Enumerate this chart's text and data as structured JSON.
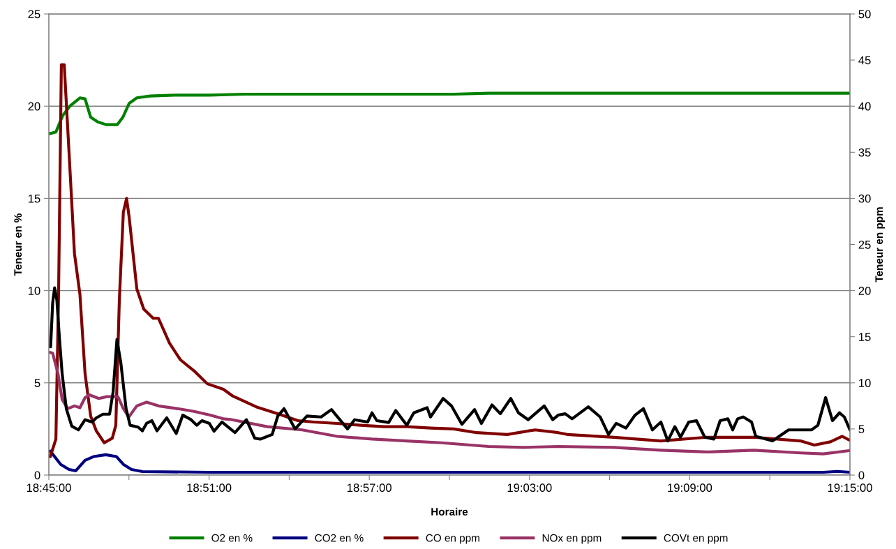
{
  "chart_data": {
    "type": "line",
    "xlabel": "Horaire",
    "ylabel": "Teneur en %",
    "y2label": "Teneur en ppm",
    "xlim": [
      18.75,
      19.25
    ],
    "xticks": [
      {
        "value": 18.75,
        "label": "18:45:00"
      },
      {
        "value": 18.8,
        "label": null
      },
      {
        "value": 18.85,
        "label": "18:51:00"
      },
      {
        "value": 18.9,
        "label": null
      },
      {
        "value": 18.95,
        "label": "18:57:00"
      },
      {
        "value": 19.0,
        "label": null
      },
      {
        "value": 19.05,
        "label": "19:03:00"
      },
      {
        "value": 19.1,
        "label": null
      },
      {
        "value": 19.15,
        "label": "19:09:00"
      },
      {
        "value": 19.2,
        "label": null
      },
      {
        "value": 19.25,
        "label": "19:15:00"
      }
    ],
    "ylim": [
      0,
      25
    ],
    "yticks": [
      0,
      5,
      10,
      15,
      20,
      25
    ],
    "y2lim": [
      0,
      50
    ],
    "y2ticks": [
      0,
      5,
      10,
      15,
      20,
      25,
      30,
      35,
      40,
      45,
      50
    ],
    "grid": "y",
    "legend": "bottom",
    "marker": "none",
    "line_style": "solid",
    "series": [
      {
        "name": "O2 en %",
        "color": "#008000",
        "x": [
          18.75,
          18.7544,
          18.7587,
          18.7631,
          18.7694,
          18.7726,
          18.7761,
          18.7805,
          18.7857,
          18.7927,
          18.7962,
          18.8001,
          18.8049,
          18.8132,
          18.8284,
          18.8502,
          18.872,
          19.0026,
          19.0244,
          19.25
        ],
        "values": [
          18.5,
          18.6,
          19.5,
          20.0,
          20.45,
          20.4,
          19.4,
          19.15,
          19.0,
          19.0,
          19.4,
          20.15,
          20.45,
          20.55,
          20.6,
          20.6,
          20.65,
          20.65,
          20.7,
          20.7
        ]
      },
      {
        "name": "CO2 en %",
        "color": "#000080",
        "x": [
          18.7509,
          18.7574,
          18.7626,
          18.7668,
          18.7726,
          18.7779,
          18.7855,
          18.7922,
          18.7965,
          18.8016,
          18.8084,
          18.8502,
          19.2334,
          19.2422,
          19.25
        ],
        "values": [
          1.3,
          0.58,
          0.3,
          0.23,
          0.8,
          1.0,
          1.1,
          1.0,
          0.58,
          0.3,
          0.19,
          0.15,
          0.15,
          0.2,
          0.15
        ]
      },
      {
        "name": "CO en ppm",
        "color": "#800000",
        "axis": "y2",
        "x": [
          18.7509,
          18.7544,
          18.7561,
          18.7578,
          18.7596,
          18.7626,
          18.766,
          18.7694,
          18.7726,
          18.7761,
          18.7796,
          18.7846,
          18.7896,
          18.7918,
          18.794,
          18.7965,
          18.7985,
          18.8001,
          18.8049,
          18.8092,
          18.8151,
          18.8184,
          18.8253,
          18.8321,
          18.8406,
          18.8489,
          18.8589,
          18.8645,
          18.8794,
          18.8937,
          18.9055,
          18.9155,
          18.9299,
          18.9447,
          18.9591,
          18.9734,
          18.9882,
          19.0026,
          19.017,
          19.0361,
          19.0535,
          19.0679,
          19.0736,
          19.1028,
          19.1319,
          19.1607,
          19.1899,
          19.2191,
          19.2278,
          19.2378,
          19.2452,
          19.2495
        ],
        "values": [
          2,
          3.9,
          20,
          44.5,
          44.5,
          35,
          24,
          19.6,
          11,
          6.4,
          4.8,
          3.5,
          4.0,
          5.4,
          19,
          28.5,
          30,
          28,
          20.2,
          18,
          17,
          17,
          14.3,
          12.5,
          11.3,
          9.9,
          9.3,
          8.6,
          7.4,
          6.6,
          5.9,
          5.75,
          5.6,
          5.4,
          5.25,
          5.25,
          5.1,
          5.0,
          4.6,
          4.4,
          4.9,
          4.6,
          4.4,
          4.1,
          3.7,
          4.1,
          4.1,
          3.7,
          3.25,
          3.6,
          4.2,
          3.8
        ]
      },
      {
        "name": "NOx en ppm",
        "color": "#993366",
        "axis": "y2",
        "x": [
          18.7509,
          18.7524,
          18.7557,
          18.7583,
          18.7618,
          18.766,
          18.7694,
          18.7726,
          18.7753,
          18.7812,
          18.7861,
          18.7931,
          18.7965,
          18.7999,
          18.8049,
          18.811,
          18.8184,
          18.8304,
          18.8406,
          18.8506,
          18.8589,
          18.8645,
          18.8863,
          18.9081,
          18.9299,
          18.9517,
          18.9734,
          18.9952,
          19.0244,
          19.0462,
          19.0679,
          19.1028,
          19.1319,
          19.1607,
          19.1899,
          19.2191,
          19.2334,
          19.2495
        ],
        "values": [
          13.3,
          13.2,
          11,
          8.2,
          7.2,
          7.5,
          7.3,
          8.4,
          8.7,
          8.3,
          8.5,
          8.5,
          7.2,
          6.3,
          7.5,
          7.9,
          7.5,
          7.2,
          6.9,
          6.5,
          6.1,
          6.0,
          5.25,
          4.9,
          4.2,
          3.9,
          3.7,
          3.5,
          3.1,
          3.0,
          3.1,
          3.0,
          2.7,
          2.5,
          2.7,
          2.4,
          2.3,
          2.65
        ]
      },
      {
        "name": "COVt en ppm",
        "color": "#000000",
        "axis": "y2",
        "x": [
          18.7511,
          18.7524,
          18.7536,
          18.755,
          18.7567,
          18.7583,
          18.7609,
          18.7643,
          18.7685,
          18.7726,
          18.777,
          18.7796,
          18.7838,
          18.7879,
          18.7901,
          18.7925,
          18.7949,
          18.7982,
          18.8007,
          18.8057,
          18.8084,
          18.811,
          18.8143,
          18.8175,
          18.8236,
          18.8295,
          18.8336,
          18.8388,
          18.8423,
          18.8456,
          18.8502,
          18.8531,
          18.858,
          18.8662,
          18.8733,
          18.8785,
          18.882,
          18.8894,
          18.8929,
          18.8968,
          18.9037,
          18.9111,
          18.9199,
          18.9264,
          18.9364,
          18.9408,
          18.949,
          18.9517,
          18.9547,
          18.9621,
          18.9665,
          18.9734,
          18.9778,
          18.9861,
          18.9882,
          18.9961,
          19.0013,
          19.0078,
          19.0157,
          19.02,
          19.0266,
          19.0318,
          19.0383,
          19.0431,
          19.0492,
          19.0592,
          19.0645,
          19.0679,
          19.0723,
          19.0766,
          19.0867,
          19.0941,
          19.0993,
          19.1041,
          19.1102,
          19.1159,
          19.1211,
          19.1267,
          19.132,
          19.1363,
          19.1407,
          19.1442,
          19.1494,
          19.1542,
          19.1594,
          19.1651,
          19.169,
          19.1738,
          19.1768,
          19.1799,
          19.1834,
          19.1886,
          19.1912,
          19.2017,
          19.2117,
          19.2217,
          19.226,
          19.23,
          19.2348,
          19.2391,
          19.2435,
          19.2465,
          19.25
        ],
        "values": [
          13.9,
          18.7,
          20.3,
          19.0,
          14.6,
          11,
          7.2,
          5.3,
          4.9,
          6.0,
          5.75,
          6.2,
          6.6,
          6.6,
          9.0,
          14.7,
          12.2,
          7.2,
          5.4,
          5.2,
          4.8,
          5.6,
          5.9,
          4.8,
          6.2,
          4.5,
          6.5,
          6.0,
          5.4,
          5.9,
          5.6,
          4.75,
          5.75,
          4.6,
          6.0,
          4.0,
          3.9,
          4.4,
          6.4,
          7.2,
          5.0,
          6.4,
          6.3,
          7.1,
          5.0,
          6.0,
          5.75,
          6.75,
          5.9,
          5.7,
          7.0,
          5.4,
          6.75,
          7.3,
          6.3,
          8.3,
          7.5,
          5.5,
          7.1,
          5.6,
          7.6,
          6.65,
          8.3,
          6.75,
          6.0,
          7.5,
          6.0,
          6.5,
          6.65,
          6.1,
          7.4,
          6.3,
          4.4,
          5.6,
          5.1,
          6.5,
          7.2,
          4.9,
          5.75,
          3.7,
          5.25,
          4.1,
          5.75,
          5.9,
          4.1,
          3.9,
          5.9,
          6.1,
          4.9,
          6.1,
          6.3,
          5.75,
          4.2,
          3.7,
          4.9,
          4.9,
          4.9,
          5.4,
          8.4,
          5.9,
          6.75,
          6.3,
          4.9
        ]
      }
    ]
  }
}
